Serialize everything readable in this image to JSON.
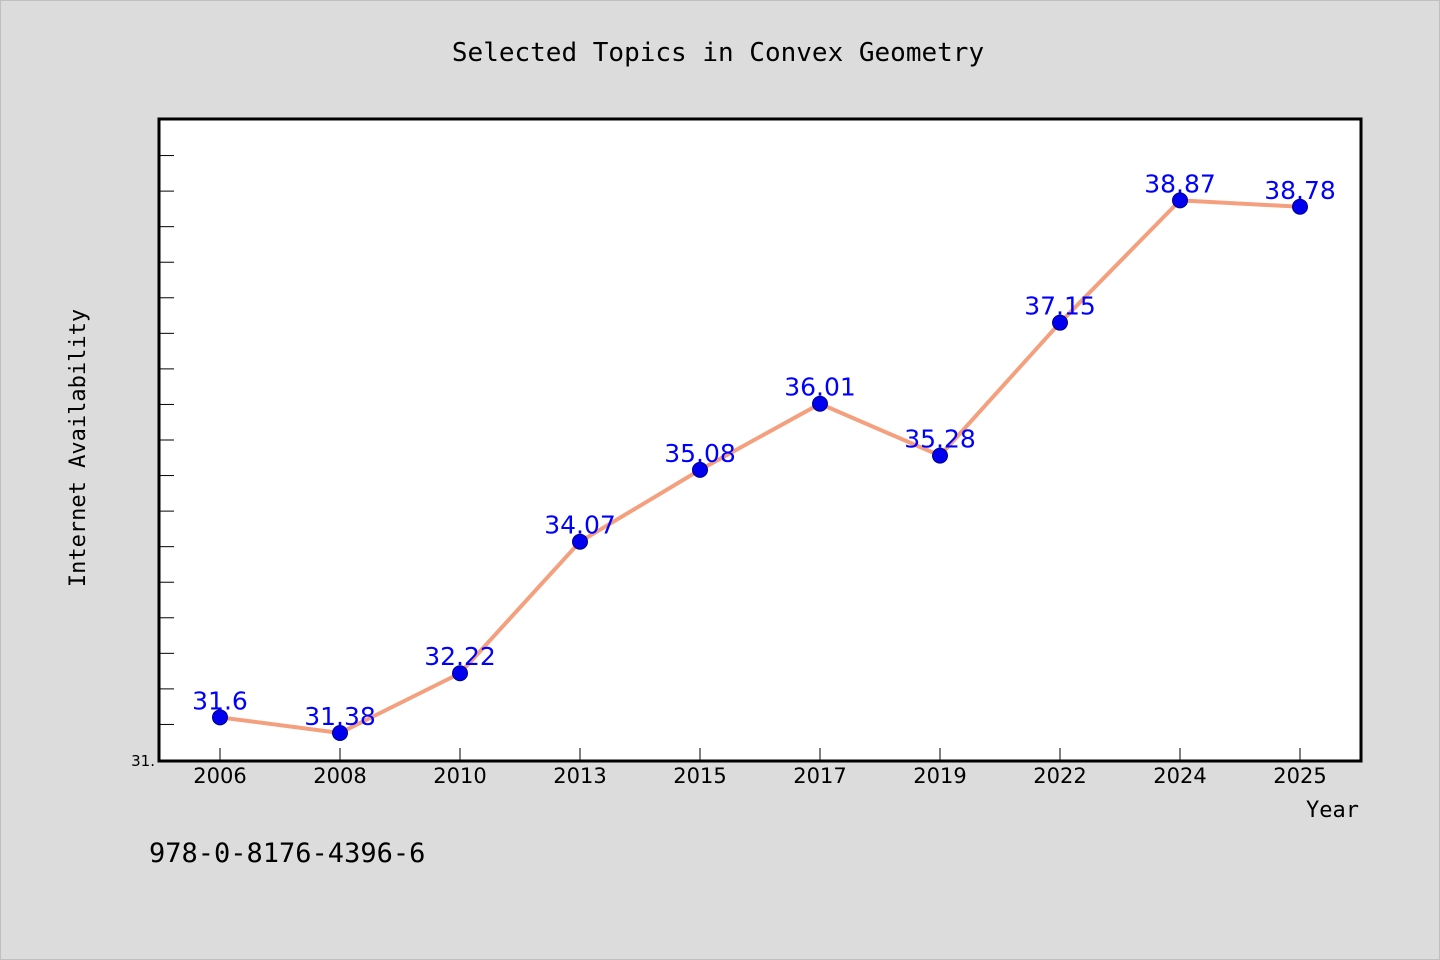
{
  "chart_data": {
    "type": "line",
    "title": "Selected Topics in Convex Geometry",
    "xlabel": "Year",
    "ylabel": "Internet Availability",
    "categories": [
      "2006",
      "2008",
      "2010",
      "2013",
      "2015",
      "2017",
      "2019",
      "2022",
      "2024",
      "2025"
    ],
    "series": [
      {
        "values": [
          31.6,
          31.38,
          32.22,
          34.07,
          35.08,
          36.01,
          35.28,
          37.15,
          38.87,
          38.78
        ]
      }
    ],
    "data_labels": [
      "31.6",
      "31.38",
      "32.22",
      "34.07",
      "35.08",
      "36.01",
      "35.28",
      "37.15",
      "38.87",
      "38.78"
    ],
    "ylim": [
      31.0,
      40.0
    ],
    "y_tick_labels": [
      {
        "value": 31.0,
        "text": "31."
      }
    ],
    "grid": false,
    "legend": "none",
    "colors": {
      "line": "#f4a07e",
      "marker": "#0000ee",
      "data_label": "#0000ff",
      "background": "#dcdcdc",
      "plot_area": "#ffffff"
    }
  },
  "footnote": "978-0-8176-4396-6"
}
